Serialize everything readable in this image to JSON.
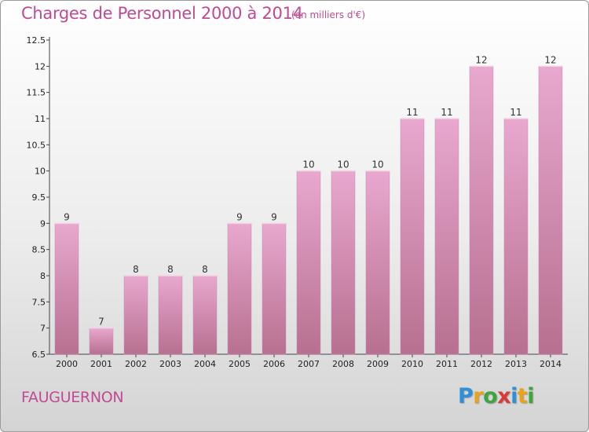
{
  "header": {
    "title": "Charges de Personnel 2000 à 2014",
    "subtitle": "(en milliers d'€)"
  },
  "footer": {
    "town": "FAUGUERNON",
    "brand_letters": [
      "P",
      "r",
      "o",
      "x",
      "i",
      "t",
      "i"
    ],
    "brand_colors": [
      "#2f8fd8",
      "#e8a317",
      "#3ea53e",
      "#d93b3b",
      "#2f8fd8",
      "#e8a317",
      "#3ea53e"
    ]
  },
  "colors": {
    "bar_top": "#e8a8cf",
    "bar_bottom": "#b7708f",
    "accent": "#c04a93"
  },
  "chart_data": {
    "type": "bar",
    "title": "Charges de Personnel 2000 à 2014",
    "subtitle": "(en milliers d'€)",
    "categories": [
      "2000",
      "2001",
      "2002",
      "2003",
      "2004",
      "2005",
      "2006",
      "2007",
      "2008",
      "2009",
      "2010",
      "2011",
      "2012",
      "2013",
      "2014"
    ],
    "values": [
      9,
      7,
      8,
      8,
      8,
      9,
      9,
      10,
      10,
      10,
      11,
      11,
      12,
      11,
      12
    ],
    "value_labels": [
      "9",
      "7",
      "8",
      "8",
      "8",
      "9",
      "9",
      "10",
      "10",
      "10",
      "11",
      "11",
      "12",
      "11",
      "12"
    ],
    "ylim": [
      6.5,
      12.5
    ],
    "yticks": [
      "6.5",
      "7",
      "7.5",
      "8",
      "8.5",
      "9",
      "9.5",
      "10",
      "10.5",
      "11",
      "11.5",
      "12",
      "12.5"
    ],
    "grid": false,
    "legend": "none"
  }
}
